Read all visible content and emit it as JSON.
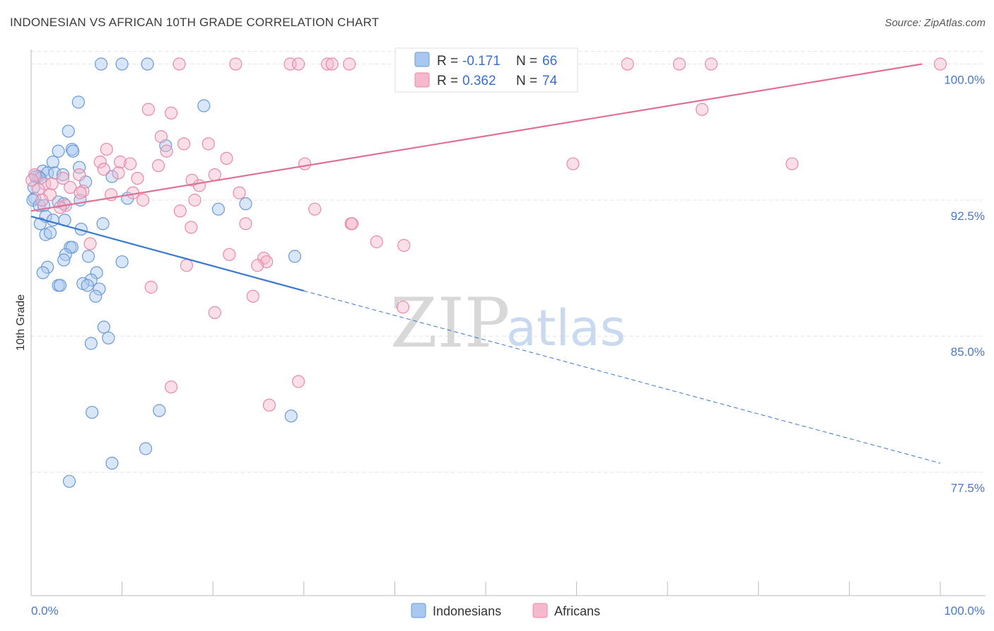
{
  "title": "INDONESIAN VS AFRICAN 10TH GRADE CORRELATION CHART",
  "source": "Source: ZipAtlas.com",
  "watermark": {
    "zip": "ZIP",
    "atlas": "atlas"
  },
  "legend": {
    "items": [
      {
        "r_label": "R =",
        "r_value": "-0.171",
        "n_label": "N =",
        "n_value": "66",
        "color": "#a9c8ef",
        "stroke": "#6a9ad8"
      },
      {
        "r_label": "R =",
        "r_value": "0.362",
        "n_label": "N =",
        "n_value": "74",
        "color": "#f6b8cc",
        "stroke": "#e88aa8"
      }
    ]
  },
  "chart_data": {
    "type": "scatter",
    "title": "INDONESIAN VS AFRICAN 10TH GRADE CORRELATION CHART",
    "xlabel": "",
    "ylabel": "10th Grade",
    "xlim": [
      0,
      100
    ],
    "ylim": [
      70.7,
      100.8
    ],
    "x_tick_labels": [
      "0.0%",
      "100.0%"
    ],
    "y_ticks": [
      77.5,
      85.0,
      92.5,
      100.0
    ],
    "y_tick_labels": [
      "77.5%",
      "85.0%",
      "92.5%",
      "100.0%"
    ],
    "grid": true,
    "legend_position": "top-center",
    "series": [
      {
        "name": "Indonesians",
        "color": "#6a9ad8",
        "fill": "#a9c8ef",
        "trend": {
          "x0": 0,
          "y0": 91.6,
          "x1": 30,
          "y1": 87.5,
          "dash_x1": 100,
          "dash_y1": 78.0
        },
        "points": [
          [
            7.7,
            100
          ],
          [
            10,
            100
          ],
          [
            12.8,
            100
          ],
          [
            5.2,
            97.9
          ],
          [
            19,
            97.7
          ],
          [
            4.1,
            96.3
          ],
          [
            14.8,
            95.5
          ],
          [
            3,
            95.2
          ],
          [
            4.5,
            95.3
          ],
          [
            4.6,
            95.2
          ],
          [
            2.4,
            94.6
          ],
          [
            5.3,
            94.3
          ],
          [
            1.3,
            94.1
          ],
          [
            1.8,
            94
          ],
          [
            2.6,
            94
          ],
          [
            3.5,
            93.9
          ],
          [
            0.8,
            93.8
          ],
          [
            0.5,
            93.8
          ],
          [
            8.9,
            93.8
          ],
          [
            6,
            93.5
          ],
          [
            0.3,
            93.2
          ],
          [
            1,
            93.7
          ],
          [
            0.4,
            92.6
          ],
          [
            0.2,
            92.5
          ],
          [
            10.6,
            92.6
          ],
          [
            3,
            92.4
          ],
          [
            5.4,
            92.5
          ],
          [
            3.6,
            92.3
          ],
          [
            0.9,
            92.2
          ],
          [
            1.4,
            92.2
          ],
          [
            23.6,
            92.3
          ],
          [
            20.6,
            92
          ],
          [
            1.6,
            91.6
          ],
          [
            2.4,
            91.4
          ],
          [
            3.7,
            91.4
          ],
          [
            1,
            91.2
          ],
          [
            7.9,
            91.2
          ],
          [
            5.5,
            90.9
          ],
          [
            1.6,
            90.6
          ],
          [
            2.1,
            90.7
          ],
          [
            4.3,
            89.9
          ],
          [
            4.5,
            89.9
          ],
          [
            3.8,
            89.5
          ],
          [
            6.3,
            89.4
          ],
          [
            29,
            89.4
          ],
          [
            3.6,
            89.2
          ],
          [
            10,
            89.1
          ],
          [
            1.8,
            88.8
          ],
          [
            1.3,
            88.5
          ],
          [
            7.2,
            88.5
          ],
          [
            6.6,
            88.1
          ],
          [
            5.7,
            87.9
          ],
          [
            6.2,
            87.8
          ],
          [
            3,
            87.8
          ],
          [
            3.2,
            87.8
          ],
          [
            7.5,
            87.6
          ],
          [
            7.1,
            87.2
          ],
          [
            8,
            85.5
          ],
          [
            8.5,
            84.9
          ],
          [
            6.6,
            84.6
          ],
          [
            6.7,
            80.8
          ],
          [
            14.1,
            80.9
          ],
          [
            28.6,
            80.6
          ],
          [
            12.6,
            78.8
          ],
          [
            8.9,
            78
          ],
          [
            4.2,
            77
          ]
        ]
      },
      {
        "name": "Africans",
        "color": "#e88aa8",
        "fill": "#f6b8cc",
        "trend": {
          "x0": 0,
          "y0": 91.9,
          "x1": 98,
          "y1": 100
        },
        "points": [
          [
            16.3,
            100
          ],
          [
            22.5,
            100
          ],
          [
            28.5,
            100
          ],
          [
            29.4,
            100
          ],
          [
            32.6,
            100
          ],
          [
            33.1,
            100
          ],
          [
            35,
            100
          ],
          [
            65.6,
            100
          ],
          [
            71.3,
            100
          ],
          [
            74.8,
            100
          ],
          [
            100,
            100
          ],
          [
            41.5,
            99.3
          ],
          [
            12.9,
            97.5
          ],
          [
            15.4,
            97.3
          ],
          [
            14.3,
            96
          ],
          [
            16.8,
            95.6
          ],
          [
            19.5,
            95.6
          ],
          [
            8.3,
            95.3
          ],
          [
            14.9,
            95.2
          ],
          [
            21.5,
            94.8
          ],
          [
            7.6,
            94.6
          ],
          [
            9.8,
            94.6
          ],
          [
            10.9,
            94.5
          ],
          [
            14,
            94.4
          ],
          [
            30.1,
            94.5
          ],
          [
            59.6,
            94.5
          ],
          [
            8,
            94.2
          ],
          [
            9.6,
            94
          ],
          [
            0.4,
            93.9
          ],
          [
            5.3,
            93.9
          ],
          [
            20.2,
            93.9
          ],
          [
            3.5,
            93.7
          ],
          [
            11.7,
            93.7
          ],
          [
            17.7,
            93.6
          ],
          [
            0.1,
            93.6
          ],
          [
            1.5,
            93.4
          ],
          [
            2.3,
            93.4
          ],
          [
            18.5,
            93.3
          ],
          [
            4.3,
            93.2
          ],
          [
            5.7,
            93
          ],
          [
            0.8,
            93.1
          ],
          [
            2.1,
            92.8
          ],
          [
            8.8,
            92.8
          ],
          [
            11.2,
            92.9
          ],
          [
            22.9,
            92.9
          ],
          [
            1.2,
            92.5
          ],
          [
            5.4,
            92.9
          ],
          [
            12.3,
            92.5
          ],
          [
            18,
            92.5
          ],
          [
            3.8,
            92.2
          ],
          [
            3.2,
            92.1
          ],
          [
            31.2,
            92
          ],
          [
            16.4,
            91.9
          ],
          [
            23.6,
            91.2
          ],
          [
            35.2,
            91.2
          ],
          [
            17.6,
            91
          ],
          [
            35.3,
            91.2
          ],
          [
            38,
            90.2
          ],
          [
            41,
            90
          ],
          [
            6.5,
            90.1
          ],
          [
            21.8,
            89.5
          ],
          [
            25.6,
            89.3
          ],
          [
            25.9,
            89.1
          ],
          [
            24.9,
            88.9
          ],
          [
            17.1,
            88.9
          ],
          [
            13.2,
            87.7
          ],
          [
            24.4,
            87.2
          ],
          [
            40.9,
            86.6
          ],
          [
            20.2,
            86.3
          ],
          [
            29.4,
            82.5
          ],
          [
            15.4,
            82.2
          ],
          [
            26.2,
            81.2
          ],
          [
            73.8,
            97.5
          ],
          [
            83.7,
            94.5
          ]
        ]
      }
    ]
  }
}
